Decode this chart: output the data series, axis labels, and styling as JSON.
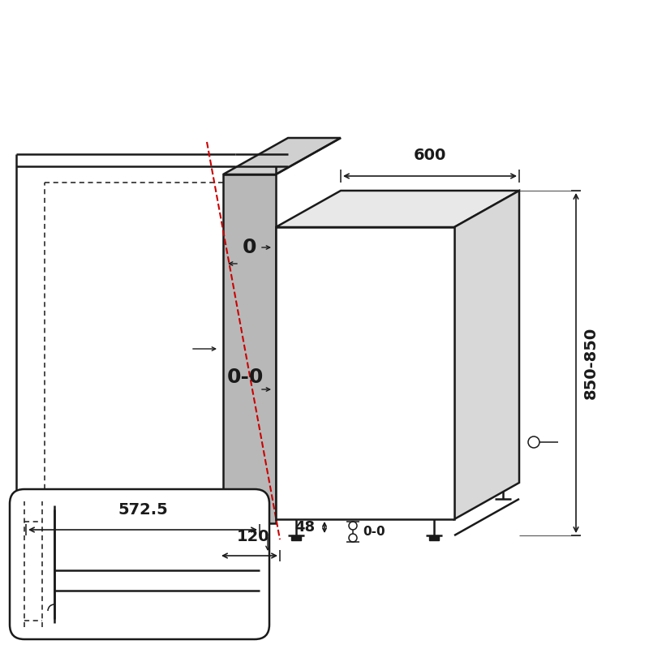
{
  "bg_color": "#ffffff",
  "line_color": "#1a1a1a",
  "red_color": "#cc0000",
  "gray_panel": "#b0b0b0",
  "gray_top": "#d0d0d0",
  "gray_side": "#c8c8c8",
  "label_600": "600",
  "label_850": "850-850",
  "label_120": "120",
  "label_48": "48",
  "label_572": "572.5",
  "label_0": "0",
  "label_00": "0-0",
  "label_00b": "0-0",
  "lw_main": 1.8,
  "lw_thin": 1.1,
  "lw_dim": 1.2
}
